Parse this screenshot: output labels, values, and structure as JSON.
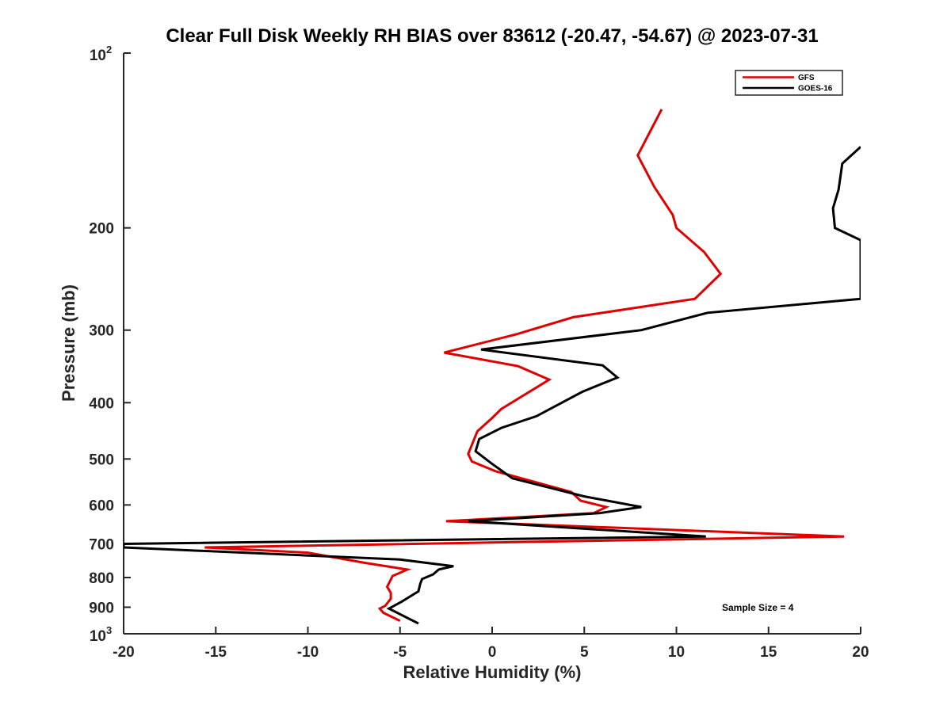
{
  "chart_data": {
    "type": "line",
    "title": "Clear Full Disk Weekly RH BIAS over 83612 (-20.47, -54.67) @ 2023-07-31",
    "xlabel": "Relative Humidity (%)",
    "ylabel": "Pressure (mb)",
    "xlim": [
      -20,
      20
    ],
    "ylim": [
      100,
      1000
    ],
    "y_scale": "log",
    "y_reversed": true,
    "x_ticks": [
      -20,
      -15,
      -10,
      -5,
      0,
      5,
      10,
      15,
      20
    ],
    "x_tick_labels": [
      "-20",
      "-15",
      "-10",
      "-5",
      "0",
      "5",
      "10",
      "15",
      "20"
    ],
    "y_ticks": [
      200,
      300,
      400,
      500,
      600,
      700,
      800,
      900
    ],
    "y_tick_labels": [
      "200",
      "300",
      "400",
      "500",
      "600",
      "700",
      "800",
      "900"
    ],
    "y_end_labels": {
      "top": {
        "base": "10",
        "exp": "2"
      },
      "bottom": {
        "base": "10",
        "exp": "3"
      }
    },
    "legend": "top-right",
    "grid": false,
    "annotation": "Sample Size = 4",
    "series": [
      {
        "name": "GFS",
        "color": "#e00000",
        "points": [
          [
            9.2,
            125
          ],
          [
            7.9,
            150
          ],
          [
            8.8,
            170
          ],
          [
            9.8,
            190
          ],
          [
            10.0,
            200
          ],
          [
            11.5,
            220
          ],
          [
            12.4,
            240
          ],
          [
            11.0,
            265
          ],
          [
            4.4,
            285
          ],
          [
            1.3,
            305
          ],
          [
            -2.6,
            328
          ],
          [
            1.4,
            346
          ],
          [
            3.1,
            365
          ],
          [
            0.5,
            410
          ],
          [
            0.0,
            425
          ],
          [
            -0.8,
            448
          ],
          [
            -1.3,
            490
          ],
          [
            -1.1,
            505
          ],
          [
            0.2,
            525
          ],
          [
            4.3,
            570
          ],
          [
            4.8,
            590
          ],
          [
            6.2,
            605
          ],
          [
            5.5,
            620
          ],
          [
            -2.5,
            640
          ],
          [
            19.1,
            680
          ],
          [
            -15.6,
            710
          ],
          [
            -10.0,
            725
          ],
          [
            -6.9,
            755
          ],
          [
            -4.6,
            775
          ],
          [
            -5.4,
            795
          ],
          [
            -5.7,
            830
          ],
          [
            -5.5,
            850
          ],
          [
            -5.5,
            870
          ],
          [
            -5.8,
            895
          ],
          [
            -6.1,
            905
          ],
          [
            -5.9,
            920
          ],
          [
            -5.0,
            950
          ]
        ]
      },
      {
        "name": "GOES-16",
        "color": "#000000",
        "points": [
          [
            20.0,
            145
          ],
          [
            19.0,
            155
          ],
          [
            18.8,
            172
          ],
          [
            18.5,
            185
          ],
          [
            18.6,
            200
          ],
          [
            20.0,
            210
          ],
          [
            20.0,
            265
          ],
          [
            11.7,
            280
          ],
          [
            8.1,
            300
          ],
          [
            -0.6,
            324
          ],
          [
            6.0,
            345
          ],
          [
            6.8,
            362
          ],
          [
            4.9,
            383
          ],
          [
            2.4,
            422
          ],
          [
            0.5,
            442
          ],
          [
            -0.7,
            462
          ],
          [
            -0.9,
            485
          ],
          [
            0.0,
            510
          ],
          [
            1.1,
            540
          ],
          [
            5.0,
            580
          ],
          [
            8.1,
            605
          ],
          [
            5.8,
            620
          ],
          [
            -1.3,
            640
          ],
          [
            11.6,
            680
          ],
          [
            -20.0,
            700
          ],
          [
            -20.0,
            710
          ],
          [
            -5.0,
            745
          ],
          [
            -2.1,
            765
          ],
          [
            -2.9,
            775
          ],
          [
            -3.2,
            790
          ],
          [
            -3.8,
            805
          ],
          [
            -3.9,
            820
          ],
          [
            -4.0,
            845
          ],
          [
            -4.9,
            880
          ],
          [
            -5.6,
            905
          ],
          [
            -4.0,
            960
          ]
        ]
      }
    ]
  }
}
